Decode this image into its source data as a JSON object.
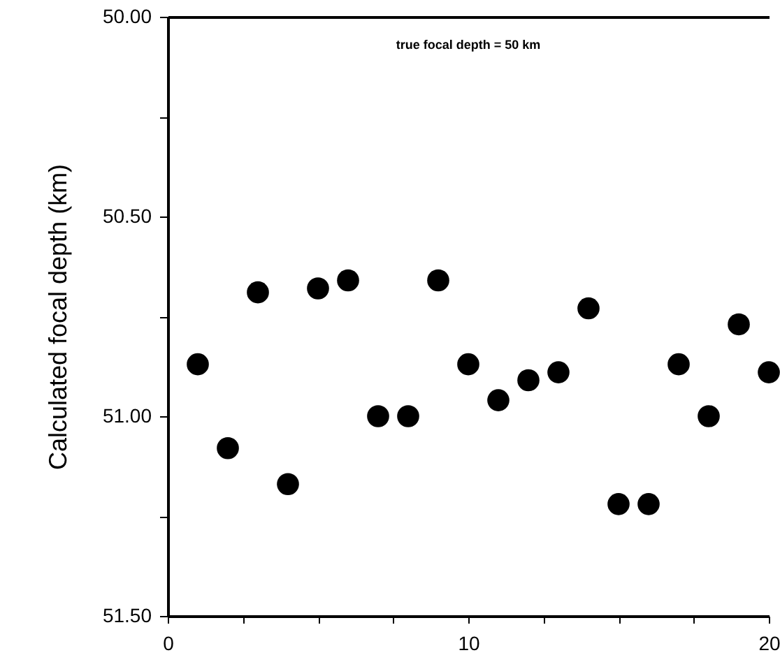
{
  "chart_data": {
    "type": "scatter",
    "ylabel": "Calculated focal depth (km)",
    "annotations": [
      "true focal depth = 50 km"
    ],
    "x": [
      1,
      2,
      3,
      4,
      5,
      6,
      7,
      8,
      9,
      10,
      11,
      12,
      13,
      14,
      15,
      16,
      17,
      18,
      19,
      20
    ],
    "series": [
      {
        "color": "#000000",
        "values": [
          50.87,
          51.08,
          50.69,
          51.17,
          50.68,
          50.66,
          51.0,
          51.0,
          50.66,
          50.87,
          50.96,
          50.91,
          50.89,
          50.73,
          51.22,
          51.22,
          50.87,
          51.0,
          50.77,
          50.89
        ]
      }
    ],
    "xlim": [
      0,
      20
    ],
    "xticks": [
      0,
      {
        "value": 2.5,
        "label": null
      },
      {
        "value": 5,
        "label": null
      },
      {
        "value": 7.5,
        "label": null
      },
      10,
      {
        "value": 12.5,
        "label": null
      },
      {
        "value": 15,
        "label": null
      },
      {
        "value": 17.5,
        "label": null
      },
      20
    ],
    "ylim": [
      51.5,
      50.0
    ],
    "yticks": [
      {
        "value": 50.0,
        "label": "50.00"
      },
      {
        "value": 50.25,
        "label": null
      },
      {
        "value": 50.5,
        "label": "50.50"
      },
      {
        "value": 50.75,
        "label": null
      },
      {
        "value": 51.0,
        "label": "51.00"
      },
      {
        "value": 51.25,
        "label": null
      },
      {
        "value": 51.5,
        "label": "51.50"
      }
    ],
    "grid": false,
    "marker": "circle"
  }
}
